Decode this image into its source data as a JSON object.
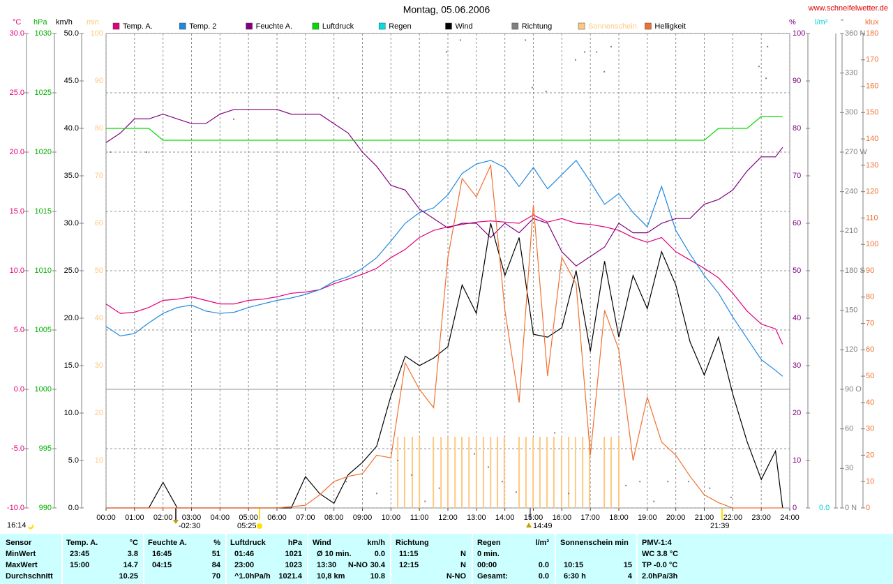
{
  "chart_data": {
    "type": "line",
    "title": "Montag, 05.06.2006",
    "source": "www.schneifelwetter.de",
    "xlim": [
      0,
      24
    ],
    "xticks": [
      {
        "value": 0,
        "label": "00:00"
      },
      {
        "value": 1,
        "label": "01:00"
      },
      {
        "value": 2,
        "label": "02:00"
      },
      {
        "value": 3,
        "label": "03:00"
      },
      {
        "value": 4,
        "label": "04:00"
      },
      {
        "value": 5,
        "label": "05:00"
      },
      {
        "value": 6,
        "label": "06:00"
      },
      {
        "value": 7,
        "label": "07:00"
      },
      {
        "value": 8,
        "label": "08:00"
      },
      {
        "value": 9,
        "label": "09:00"
      },
      {
        "value": 10,
        "label": "10:00"
      },
      {
        "value": 11,
        "label": "11:00"
      },
      {
        "value": 12,
        "label": "12:00"
      },
      {
        "value": 13,
        "label": "13:00"
      },
      {
        "value": 14,
        "label": "14:00"
      },
      {
        "value": 15,
        "label": "15:00"
      },
      {
        "value": 16,
        "label": "16:00"
      },
      {
        "value": 17,
        "label": "17:00"
      },
      {
        "value": 18,
        "label": "18:00"
      },
      {
        "value": 19,
        "label": "19:00"
      },
      {
        "value": 20,
        "label": "20:00"
      },
      {
        "value": 21,
        "label": "21:00"
      },
      {
        "value": 22,
        "label": "22:00"
      },
      {
        "value": 23,
        "label": "23:00"
      },
      {
        "value": 24,
        "label": "24:00"
      }
    ],
    "axes": [
      {
        "unit": "°C",
        "color": "#e0007a",
        "grid": true,
        "lim": [
          -10,
          30
        ],
        "ticks": [
          {
            "value": -10,
            "label": "-10.0"
          },
          {
            "value": -5,
            "label": "-5.0"
          },
          {
            "value": 0,
            "label": "0.0"
          },
          {
            "value": 5,
            "label": "5.0"
          },
          {
            "value": 10,
            "label": "10.0"
          },
          {
            "value": 15,
            "label": "15.0"
          },
          {
            "value": 20,
            "label": "20.0"
          },
          {
            "value": 25,
            "label": "25.0"
          },
          {
            "value": 30,
            "label": "30.0"
          }
        ]
      },
      {
        "unit": "hPa",
        "color": "#00b000",
        "lim": [
          990,
          1030
        ],
        "ticks": [
          990,
          995,
          1000,
          1005,
          1010,
          1015,
          1020,
          1025,
          1030
        ]
      },
      {
        "unit": "km/h",
        "color": "#000000",
        "lim": [
          0,
          50
        ],
        "ticks": [
          {
            "value": 0,
            "label": "0.0"
          },
          {
            "value": 5,
            "label": "5.0"
          },
          {
            "value": 10,
            "label": "10.0"
          },
          {
            "value": 15,
            "label": "15.0"
          },
          {
            "value": 20,
            "label": "20.0"
          },
          {
            "value": 25,
            "label": "25.0"
          },
          {
            "value": 30,
            "label": "30.0"
          },
          {
            "value": 35,
            "label": "35.0"
          },
          {
            "value": 40,
            "label": "40.0"
          },
          {
            "value": 45,
            "label": "45.0"
          },
          {
            "value": 50,
            "label": "50.0"
          }
        ]
      },
      {
        "unit": "min",
        "color": "#ffc880",
        "lim": [
          0,
          100
        ],
        "ticks": [
          10,
          20,
          30,
          40,
          50,
          60,
          70,
          80,
          90,
          100
        ]
      },
      {
        "unit": "%",
        "color": "#800080",
        "lim": [
          0,
          100
        ],
        "ticks": [
          0,
          10,
          20,
          30,
          40,
          50,
          60,
          70,
          80,
          90,
          100
        ]
      },
      {
        "unit": "l/m²",
        "color": "#00d0d0",
        "ticks": [
          {
            "value": 0,
            "label": "0.0"
          }
        ]
      },
      {
        "unit": "°",
        "color": "#808080",
        "lim": [
          0,
          360
        ],
        "ticks": [
          {
            "value": 0,
            "label": "0 N"
          },
          30,
          60,
          {
            "value": 90,
            "label": "90 O"
          },
          120,
          150,
          {
            "value": 180,
            "label": "180 S"
          },
          210,
          240,
          {
            "value": 270,
            "label": "270 W"
          },
          300,
          330,
          {
            "value": 360,
            "label": "360 N"
          }
        ]
      },
      {
        "unit": "klux",
        "color": "#f07030",
        "lim": [
          0,
          180
        ],
        "ticks": [
          0,
          10,
          20,
          30,
          40,
          50,
          60,
          70,
          80,
          90,
          100,
          110,
          120,
          130,
          140,
          150,
          160,
          170,
          180
        ]
      }
    ],
    "x": [
      0,
      0.5,
      1,
      1.5,
      2,
      2.5,
      3,
      3.5,
      4,
      4.5,
      5,
      5.5,
      6,
      6.5,
      7,
      7.5,
      8,
      8.5,
      9,
      9.5,
      10,
      10.5,
      11,
      11.5,
      12,
      12.5,
      13,
      13.5,
      14,
      14.5,
      15,
      15.5,
      16,
      16.5,
      17,
      17.5,
      18,
      18.5,
      19,
      19.5,
      20,
      20.5,
      21,
      21.5,
      22,
      22.5,
      23,
      23.5,
      23.75
    ],
    "series": [
      {
        "name": "Temp. A.",
        "color": "#e0007a",
        "axis": "°C",
        "type": "line",
        "values": [
          7.2,
          6.4,
          6.5,
          6.9,
          7.5,
          7.6,
          7.8,
          7.5,
          7.2,
          7.2,
          7.5,
          7.6,
          7.8,
          8.1,
          8.2,
          8.4,
          8.9,
          9.3,
          9.7,
          10.2,
          11.1,
          11.8,
          12.8,
          13.4,
          13.7,
          13.9,
          14.1,
          14.2,
          14.1,
          14.0,
          14.7,
          14.1,
          14.4,
          14.0,
          13.9,
          13.7,
          13.4,
          12.8,
          12.4,
          12.8,
          11.6,
          10.9,
          10.2,
          9.4,
          8.1,
          6.6,
          5.5,
          5.1,
          3.8
        ]
      },
      {
        "name": "Temp. 2",
        "color": "#1e88e0",
        "axis": "°C",
        "type": "line",
        "values": [
          5.3,
          4.5,
          4.7,
          5.6,
          6.4,
          6.9,
          7.1,
          6.6,
          6.4,
          6.5,
          6.9,
          7.2,
          7.5,
          7.7,
          8.0,
          8.4,
          9.1,
          9.5,
          10.2,
          11.1,
          12.5,
          14.0,
          14.9,
          15.3,
          16.4,
          18.2,
          19.0,
          19.3,
          18.7,
          17.1,
          18.7,
          16.9,
          18.1,
          19.3,
          17.5,
          15.6,
          16.5,
          14.9,
          13.7,
          17.1,
          13.4,
          11.4,
          9.6,
          8.1,
          6.1,
          4.3,
          2.5,
          1.6,
          1.1
        ]
      },
      {
        "name": "Feuchte A.",
        "color": "#800080",
        "axis": "%",
        "type": "line",
        "values": [
          77,
          79,
          82,
          82,
          83,
          82,
          81,
          81,
          83,
          84,
          84,
          84,
          84,
          83,
          83,
          83,
          81,
          79,
          75,
          72,
          68,
          67,
          63,
          61,
          59,
          60,
          60,
          57,
          60,
          58,
          61,
          60,
          54,
          51,
          53,
          55,
          60,
          58,
          58,
          60,
          61,
          61,
          64,
          65,
          67,
          71,
          74,
          74,
          76
        ]
      },
      {
        "name": "Luftdruck",
        "color": "#00dd00",
        "axis": "hPa",
        "type": "line",
        "values": [
          1022,
          1022,
          1022,
          1022,
          1021,
          1021,
          1021,
          1021,
          1021,
          1021,
          1021,
          1021,
          1021,
          1021,
          1021,
          1021,
          1021,
          1021,
          1021,
          1021,
          1021,
          1021,
          1021,
          1021,
          1021,
          1021,
          1021,
          1021,
          1021,
          1021,
          1021,
          1021,
          1021,
          1021,
          1021,
          1021,
          1021,
          1021,
          1021,
          1021,
          1021,
          1021,
          1021,
          1022,
          1022,
          1022,
          1023,
          1023,
          1023
        ]
      },
      {
        "name": "Regen",
        "color": "#00e0e0",
        "axis": "l/m²",
        "type": "line"
      },
      {
        "name": "Wind",
        "color": "#000000",
        "axis": "km/h",
        "type": "line",
        "values": [
          0,
          0,
          0,
          0,
          2.7,
          0,
          0,
          0,
          0,
          0,
          0,
          0,
          0,
          0,
          3.3,
          1.5,
          0.5,
          3.5,
          4.8,
          6.5,
          11.8,
          16.0,
          15.0,
          15.8,
          17.0,
          23.5,
          20.5,
          30.0,
          24.5,
          28.5,
          18.3,
          18.0,
          19.0,
          25.0,
          16.5,
          26.0,
          18.0,
          24.5,
          21.0,
          27.0,
          23.5,
          17.5,
          14.0,
          18.0,
          12.0,
          7.0,
          3.0,
          6.0,
          0
        ]
      },
      {
        "name": "Richtung",
        "color": "#808080",
        "axis": "°",
        "type": "scatter",
        "x": [
          0.15,
          1.42,
          4.48,
          8.16,
          8.43,
          9.5,
          10.24,
          10.73,
          11.2,
          11.7,
          11.95,
          12.44,
          12.93,
          13.42,
          13.91,
          14.4,
          14.72,
          14.96,
          15.45,
          15.75,
          16.24,
          16.48,
          16.8,
          17.22,
          17.49,
          17.73,
          18.25,
          18.74,
          19.23,
          19.72,
          20.45,
          21.19,
          21.94,
          22.92,
          23.17,
          23.22
        ],
        "values": [
          270,
          270,
          295,
          311,
          20,
          11,
          36,
          25,
          5,
          15,
          346,
          355,
          41,
          31,
          20,
          12,
          355,
          319,
          316,
          57,
          11,
          340,
          346,
          346,
          331,
          350,
          17,
          20,
          5,
          20,
          20,
          15,
          8,
          335,
          326,
          350
        ]
      },
      {
        "name": "Sonnenschein",
        "color": "#ffc880",
        "axis": "min",
        "type": "bar",
        "x": [
          10.24,
          10.48,
          10.75,
          11.0,
          11.49,
          11.76,
          12.0,
          12.25,
          12.49,
          12.74,
          13.0,
          13.25,
          13.5,
          13.74,
          13.98,
          14.5,
          14.74,
          14.99,
          15.23,
          15.48,
          15.72,
          15.99,
          16.24,
          16.48,
          16.73,
          16.97,
          17.49,
          17.73,
          18.0
        ],
        "values": [
          15,
          15,
          15,
          15,
          15,
          15,
          15,
          15,
          15,
          15,
          15,
          15,
          15,
          15,
          15,
          15,
          15,
          15,
          15,
          15,
          15,
          15,
          15,
          15,
          15,
          15,
          15,
          15,
          15
        ]
      },
      {
        "name": "Helligkeit",
        "color": "#f07030",
        "axis": "klux",
        "type": "line",
        "values": [
          0,
          0,
          0,
          0,
          0,
          0,
          0,
          0,
          0,
          0,
          0,
          0,
          0,
          0.5,
          1,
          5,
          10,
          12,
          13,
          20,
          19,
          55,
          45,
          38,
          95,
          125,
          118,
          130,
          75,
          40,
          115,
          50,
          95,
          85,
          20,
          75,
          60,
          18,
          42,
          25,
          20,
          12,
          5,
          2,
          0,
          0,
          0,
          0,
          0
        ]
      }
    ],
    "events": [
      "16:14",
      "-02:30",
      "05:25",
      "14:49",
      "21:39"
    ],
    "table": {
      "header": [
        "Sensor",
        "Temp. A.",
        "°C",
        "Feuchte A.",
        "%",
        "Luftdruck",
        "hPa",
        "Wind",
        "km/h",
        "Richtung",
        "Regen",
        "l/m²",
        "Sonnenschein min",
        "PMV-1:4"
      ],
      "rows": [
        [
          "MinWert",
          "23:45",
          "3.8",
          "16:45",
          "51",
          "01:46",
          "1021",
          "Ø 10 min.",
          null,
          "0.0",
          "11:15",
          "N",
          "0 min.",
          null,
          null,
          null,
          "WC 3.8 °C"
        ],
        [
          "MaxWert",
          "15:00",
          "14.7",
          "04:15",
          "84",
          "23:00",
          "1023",
          "13:30",
          "N-NO",
          "30.4",
          "12:15",
          "N",
          "00:00",
          "0.0",
          "10:15",
          "15",
          "TP -0.0 °C"
        ],
        [
          "Durchschnitt",
          null,
          "10.25",
          null,
          "70",
          "^1.0hPa/h",
          "1021.4",
          "10,8 km",
          null,
          "10.8",
          null,
          "N-NO",
          "Gesamt:",
          "0.0",
          "6:30 h",
          "4",
          "2.0hPa/3h"
        ]
      ]
    }
  }
}
